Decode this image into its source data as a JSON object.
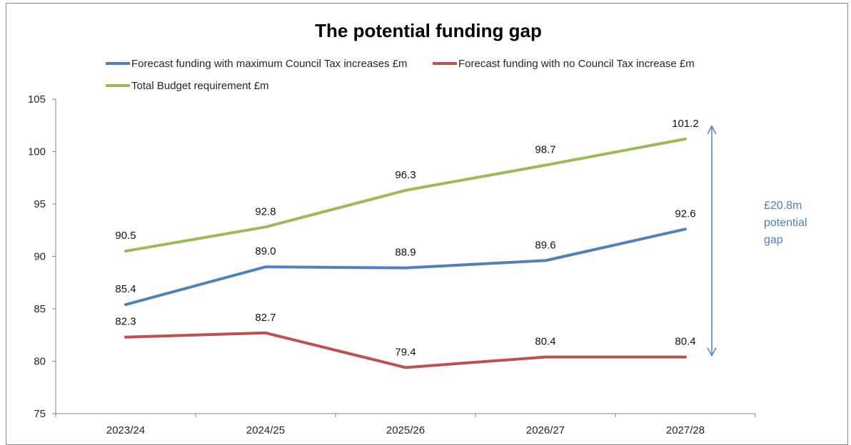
{
  "chart_data": {
    "type": "line",
    "title": "The potential funding gap",
    "categories": [
      "2023/24",
      "2024/25",
      "2025/26",
      "2026/27",
      "2027/28"
    ],
    "ylim": [
      75,
      105
    ],
    "yticks": [
      "75",
      "80",
      "85",
      "90",
      "95",
      "100",
      "105"
    ],
    "grid": false,
    "legend_position": "top",
    "series": [
      {
        "name": "Forecast funding with maximum Council Tax increases £m",
        "color": "#4f81bd",
        "values": [
          85.4,
          89.0,
          88.9,
          89.6,
          92.6
        ],
        "labels": [
          "85.4",
          "89.0",
          "88.9",
          "89.6",
          "92.6"
        ]
      },
      {
        "name": "Forecast funding with no Council Tax increase £m",
        "color": "#c0504d",
        "values": [
          82.3,
          82.7,
          79.4,
          80.4,
          80.4
        ],
        "labels": [
          "82.3",
          "82.7",
          "79.4",
          "80.4",
          "80.4"
        ]
      },
      {
        "name": "Total Budget requirement £m",
        "color": "#9bbb59",
        "values": [
          90.5,
          92.8,
          96.3,
          98.7,
          101.2
        ],
        "labels": [
          "90.5",
          "92.8",
          "96.3",
          "98.7",
          "101.2"
        ]
      }
    ],
    "annotation": {
      "lines": [
        "£20.8m",
        "potential",
        "gap"
      ],
      "color": "#4f81bd",
      "arrow_from": 80.4,
      "arrow_to": 101.2
    }
  }
}
